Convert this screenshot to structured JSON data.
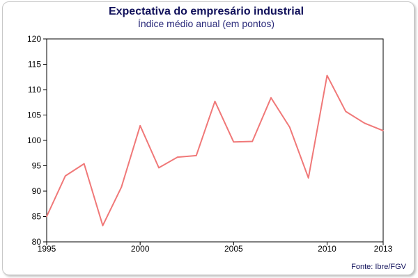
{
  "chart_data": {
    "type": "line",
    "title": "Expectativa do empresário industrial",
    "subtitle": "Índice médio anual (em pontos)",
    "source": "Fonte: Ibre/FGV",
    "xlabel": "",
    "ylabel": "",
    "xlim": [
      1995,
      2013
    ],
    "ylim": [
      80,
      120
    ],
    "x_ticks": [
      1995,
      2000,
      2005,
      2010,
      2013
    ],
    "y_ticks": [
      80,
      85,
      90,
      95,
      100,
      105,
      110,
      115,
      120
    ],
    "grid": false,
    "series": [
      {
        "color": "#f07878",
        "x": [
          1995,
          1996,
          1997,
          1998,
          1999,
          2000,
          2001,
          2002,
          2003,
          2004,
          2005,
          2006,
          2007,
          2008,
          2009,
          2010,
          2011,
          2012,
          2013
        ],
        "y": [
          85.0,
          93.0,
          95.4,
          83.2,
          90.8,
          102.9,
          94.6,
          96.7,
          97.0,
          107.7,
          99.7,
          99.8,
          108.4,
          102.6,
          92.6,
          112.8,
          105.7,
          103.4,
          101.9
        ]
      }
    ]
  }
}
